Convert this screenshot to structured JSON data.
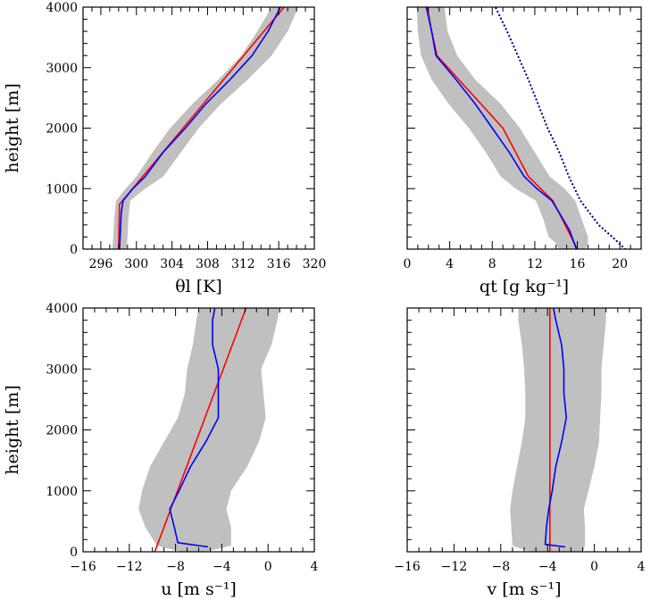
{
  "chart_data": [
    {
      "type": "line",
      "xlabel": "θl [K]",
      "ylabel": "height [m]",
      "xlim": [
        294,
        320
      ],
      "ylim": [
        0,
        4000
      ],
      "xticks": [
        296,
        300,
        304,
        308,
        312,
        316,
        320
      ],
      "yticks": [
        0,
        1000,
        2000,
        3000,
        4000
      ],
      "grid": false,
      "band_color": "#c0c0c0",
      "band": {
        "y": [
          0,
          200,
          500,
          800,
          1000,
          1200,
          1600,
          2000,
          2400,
          2800,
          3200,
          3600,
          4000
        ],
        "low": [
          297.3,
          297.4,
          297.5,
          297.7,
          298.8,
          300.0,
          301.8,
          303.8,
          306.3,
          309.2,
          311.8,
          313.6,
          315.2
        ],
        "high": [
          298.9,
          299.0,
          299.1,
          299.3,
          301.0,
          303.0,
          305.0,
          307.0,
          309.5,
          312.5,
          315.2,
          317.0,
          318.2
        ]
      },
      "series": [
        {
          "color": "#ff0000",
          "style": "solid",
          "y": [
            0,
            740,
            4000
          ],
          "values": [
            298.0,
            298.1,
            316.6
          ]
        },
        {
          "color": "#0000ff",
          "style": "solid",
          "y": [
            0,
            300,
            600,
            800,
            1000,
            1200,
            1600,
            2000,
            2400,
            2800,
            3200,
            3600,
            4000
          ],
          "values": [
            298.1,
            298.2,
            298.3,
            298.5,
            299.6,
            301.0,
            303.0,
            305.5,
            307.8,
            310.5,
            313.0,
            314.8,
            316.2
          ]
        }
      ]
    },
    {
      "type": "line",
      "xlabel": "qt [g kg⁻¹]",
      "ylabel": "",
      "xlim": [
        0,
        22
      ],
      "ylim": [
        0,
        4000
      ],
      "xticks": [
        0,
        4,
        8,
        12,
        16,
        20
      ],
      "yticks": [
        0,
        1000,
        2000,
        3000,
        4000
      ],
      "grid": false,
      "band_color": "#c0c0c0",
      "band": {
        "y": [
          0,
          100,
          200,
          500,
          800,
          1000,
          1200,
          1600,
          2000,
          2400,
          2800,
          3200,
          3600,
          4000
        ],
        "low": [
          14.2,
          14.0,
          13.3,
          12.8,
          12.1,
          10.2,
          8.8,
          7.4,
          5.8,
          3.9,
          2.3,
          1.3,
          1.0,
          0.9
        ],
        "high": [
          16.8,
          17.0,
          17.0,
          16.4,
          15.8,
          14.8,
          13.4,
          12.0,
          10.6,
          8.8,
          6.4,
          4.7,
          3.8,
          3.5
        ]
      },
      "series": [
        {
          "color": "#ff0000",
          "style": "solid",
          "y": [
            0,
            800,
            1200,
            2000,
            3200,
            3600,
            4000
          ],
          "values": [
            16.0,
            13.7,
            11.4,
            9.0,
            2.8,
            2.3,
            1.9
          ]
        },
        {
          "color": "#0000ff",
          "style": "solid",
          "y": [
            0,
            300,
            600,
            800,
            1000,
            1200,
            1600,
            2000,
            2400,
            2800,
            3200,
            3600,
            4000
          ],
          "values": [
            15.9,
            15.3,
            14.3,
            13.6,
            12.2,
            11.0,
            9.6,
            8.0,
            6.4,
            4.6,
            2.7,
            2.3,
            1.8
          ]
        },
        {
          "color": "#00008b",
          "style": "dotted",
          "y": [
            0,
            200,
            400,
            800,
            1200,
            1600,
            2000,
            2400,
            2800,
            3200,
            3600,
            4000
          ],
          "values": [
            20.5,
            19.3,
            18.0,
            16.3,
            15.2,
            14.3,
            13.2,
            12.3,
            11.4,
            10.4,
            9.4,
            8.3
          ]
        }
      ]
    },
    {
      "type": "line",
      "xlabel": "u [m s⁻¹]",
      "ylabel": "height [m]",
      "xlim": [
        -16,
        4
      ],
      "ylim": [
        0,
        4000
      ],
      "xticks": [
        -16,
        -12,
        -8,
        -4,
        0,
        4
      ],
      "yticks": [
        0,
        1000,
        2000,
        3000,
        4000
      ],
      "grid": false,
      "band_color": "#c0c0c0",
      "band": {
        "y": [
          0,
          100,
          400,
          700,
          1000,
          1400,
          1800,
          2200,
          2600,
          3000,
          3400,
          3800,
          4000
        ],
        "low": [
          -7.5,
          -9.6,
          -10.6,
          -11.2,
          -10.9,
          -10.2,
          -9.0,
          -7.8,
          -7.2,
          -7.0,
          -6.5,
          -6.2,
          -6.0
        ],
        "high": [
          -5.4,
          -3.2,
          -3.2,
          -3.6,
          -3.2,
          -1.8,
          -0.8,
          -0.2,
          -0.4,
          -0.6,
          0.3,
          0.8,
          1.0
        ]
      },
      "series": [
        {
          "color": "#ff0000",
          "style": "solid",
          "y": [
            0,
            4000
          ],
          "values": [
            -9.8,
            -1.9
          ]
        },
        {
          "color": "#0000ff",
          "style": "solid",
          "y": [
            80,
            150,
            400,
            700,
            1000,
            1400,
            1800,
            2200,
            2600,
            3000,
            3400,
            3800,
            4000
          ],
          "values": [
            -5.2,
            -7.8,
            -8.1,
            -8.5,
            -7.7,
            -6.7,
            -5.4,
            -4.3,
            -4.3,
            -4.3,
            -4.8,
            -4.8,
            -4.6
          ]
        }
      ]
    },
    {
      "type": "line",
      "xlabel": "v [m s⁻¹]",
      "ylabel": "",
      "xlim": [
        -16,
        4
      ],
      "ylim": [
        0,
        4000
      ],
      "xticks": [
        -16,
        -12,
        -8,
        -4,
        0,
        4
      ],
      "yticks": [
        0,
        1000,
        2000,
        3000,
        4000
      ],
      "grid": false,
      "band_color": "#c0c0c0",
      "band": {
        "y": [
          0,
          100,
          400,
          700,
          1000,
          1400,
          1800,
          2200,
          2600,
          3000,
          3400,
          3800,
          4000
        ],
        "low": [
          -5.5,
          -7.0,
          -7.1,
          -7.2,
          -7.0,
          -6.6,
          -6.2,
          -5.9,
          -5.9,
          -6.0,
          -6.2,
          -6.5,
          -6.5
        ],
        "high": [
          -1.0,
          -0.8,
          -0.8,
          -0.9,
          -0.5,
          0.0,
          0.4,
          0.5,
          0.6,
          0.6,
          0.8,
          1.0,
          1.0
        ]
      },
      "series": [
        {
          "color": "#ff0000",
          "style": "solid",
          "y": [
            0,
            4000
          ],
          "values": [
            -3.8,
            -3.8
          ]
        },
        {
          "color": "#0000ff",
          "style": "solid",
          "y": [
            80,
            120,
            400,
            700,
            1000,
            1400,
            1800,
            2200,
            2400,
            2600,
            3000,
            3400,
            3800,
            4000
          ],
          "values": [
            -2.5,
            -4.2,
            -4.1,
            -3.9,
            -3.6,
            -3.3,
            -2.8,
            -2.4,
            -2.5,
            -2.6,
            -2.6,
            -2.8,
            -3.3,
            -3.5
          ]
        }
      ]
    }
  ]
}
